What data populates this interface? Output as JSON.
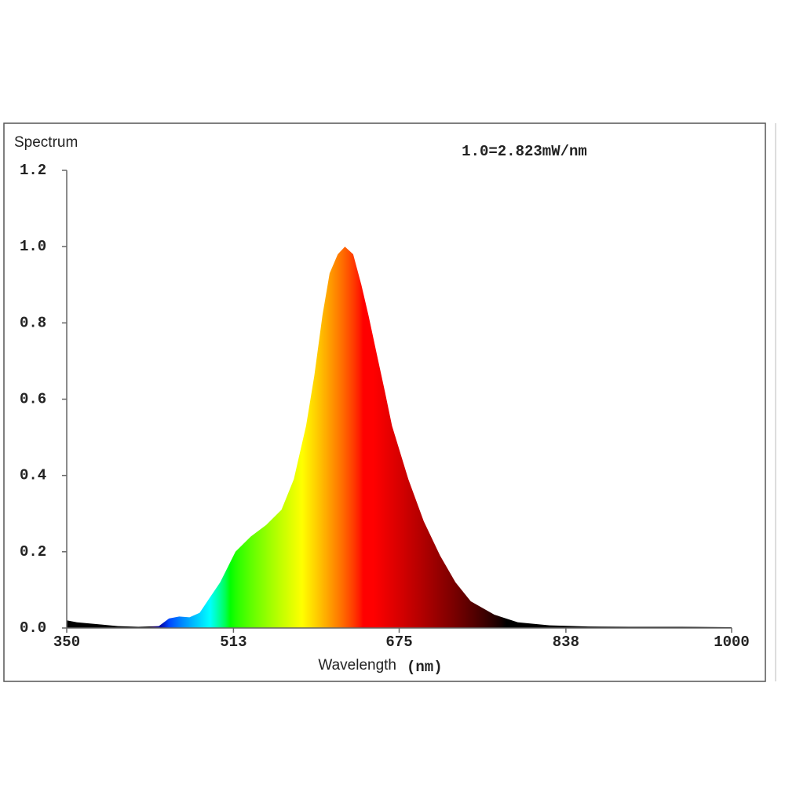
{
  "chart_data": {
    "type": "area",
    "title": "Spectrum",
    "annotation": "1.0=2.823mW/nm",
    "x_label": "Wavelength",
    "x_unit": "(nm)",
    "fill": "wavelength",
    "x": [
      350,
      360,
      380,
      400,
      420,
      440,
      450,
      460,
      470,
      480,
      490,
      500,
      515,
      530,
      545,
      560,
      572,
      584,
      592,
      600,
      607,
      615,
      622,
      630,
      638,
      645,
      653,
      661,
      668,
      684,
      699,
      715,
      730,
      745,
      768,
      791,
      822,
      860,
      900,
      950,
      1000
    ],
    "values": [
      0.02,
      0.015,
      0.01,
      0.005,
      0.003,
      0.005,
      0.025,
      0.03,
      0.028,
      0.04,
      0.08,
      0.12,
      0.2,
      0.24,
      0.27,
      0.31,
      0.39,
      0.53,
      0.66,
      0.82,
      0.93,
      0.98,
      1.0,
      0.98,
      0.9,
      0.82,
      0.72,
      0.62,
      0.53,
      0.39,
      0.28,
      0.19,
      0.12,
      0.07,
      0.035,
      0.015,
      0.007,
      0.004,
      0.003,
      0.003,
      0.002
    ],
    "xlim": [
      350,
      1000
    ],
    "xticks": [
      350,
      513,
      675,
      838,
      1000
    ],
    "ylim": [
      0,
      1.2
    ],
    "yticks": [
      {
        "value": 0,
        "label": "0.0"
      },
      0.2,
      0.4,
      0.6,
      0.8,
      {
        "value": 1,
        "label": "1.0"
      },
      1.2
    ],
    "grid": false
  }
}
